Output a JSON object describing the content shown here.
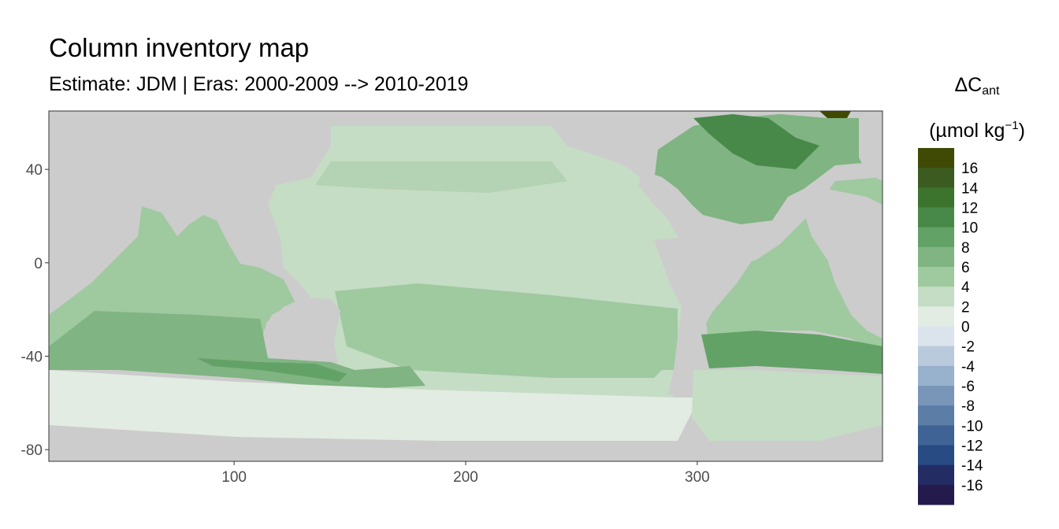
{
  "title": "Column inventory map",
  "subtitle": "Estimate: JDM  | Eras: 2000-2009 --> 2010-2019",
  "legend": {
    "title_symbol": "ΔC",
    "title_subscript": "ant",
    "unit_main": "(µmol kg",
    "unit_exponent": "−1",
    "unit_close": ")",
    "labels": [
      "16",
      "14",
      "12",
      "10",
      "8",
      "6",
      "4",
      "2",
      "0",
      "-2",
      "-4",
      "-6",
      "-8",
      "-10",
      "-12",
      "-14",
      "-16"
    ],
    "colors": [
      "#404a04",
      "#3c5b20",
      "#3c742e",
      "#48894a",
      "#62a266",
      "#80b482",
      "#9fc99f",
      "#c5dcc5",
      "#e2ece2",
      "#dbe3ec",
      "#b9cadc",
      "#98b1cd",
      "#7996b8",
      "#5c7da6",
      "#3e6394",
      "#284b83",
      "#232d64",
      "#241b4c"
    ]
  },
  "chart_data": {
    "type": "heatmap",
    "title": "Column inventory map",
    "subtitle": "Estimate: JDM  | Eras: 2000-2009 --> 2010-2019",
    "xlabel": "",
    "ylabel": "",
    "xlim": [
      20,
      380
    ],
    "ylim": [
      -85,
      65
    ],
    "x_ticks": [
      100,
      200,
      300
    ],
    "y_ticks": [
      40,
      0,
      -40,
      -80
    ],
    "x_tick_labels": [
      "100",
      "200",
      "300"
    ],
    "y_tick_labels": [
      "40",
      "0",
      "-40",
      "-80"
    ],
    "grid": false,
    "legend_placement": "right",
    "land_color": "#cccccc",
    "color_scale_breaks": [
      16,
      14,
      12,
      10,
      8,
      6,
      4,
      2,
      0,
      -2,
      -4,
      -6,
      -8,
      -10,
      -12,
      -14,
      -16
    ]
  }
}
